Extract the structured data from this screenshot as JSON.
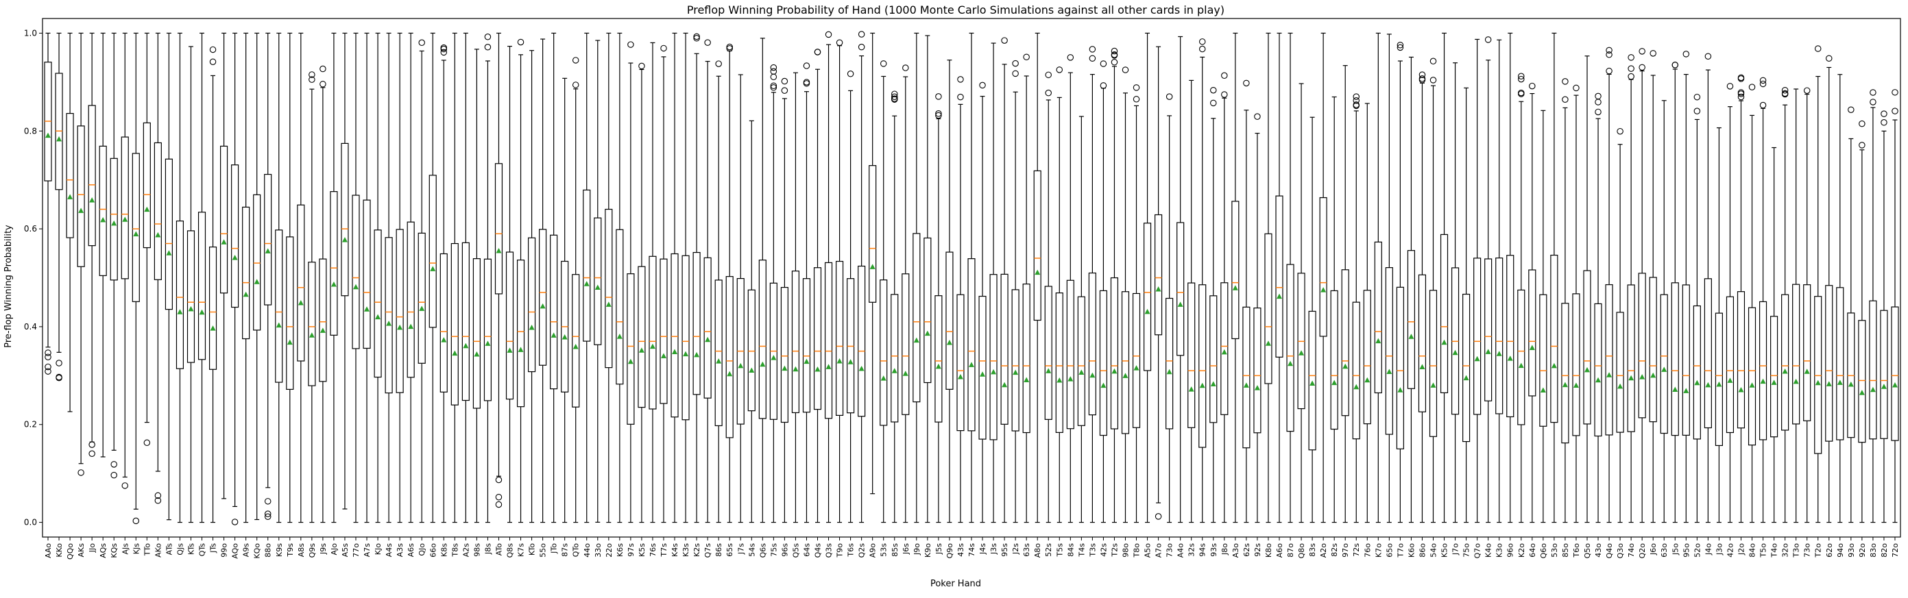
{
  "chart_data": {
    "type": "box",
    "title": "Preflop Winning Probability of Hand (1000 Monte Carlo Simulations against all other cards in play)",
    "xlabel": "Poker Hand",
    "ylabel": "Pre-flop Winning Probability",
    "ylim": [
      -0.03,
      1.03
    ],
    "yticks": [
      0.0,
      0.2,
      0.4,
      0.6,
      0.8,
      1.0
    ],
    "ytick_labels": [
      "0.0",
      "0.2",
      "0.4",
      "0.6",
      "0.8",
      "1.0"
    ],
    "grid": false,
    "legend": null,
    "colors": {
      "box": "#000000",
      "median": "#ff7f0e",
      "mean": "#2ca02c"
    },
    "categories": [
      "AAo",
      "KKo",
      "QQo",
      "AKs",
      "JJo",
      "AQs",
      "KQs",
      "AJs",
      "KJs",
      "TTo",
      "AKo",
      "ATs",
      "QJs",
      "KTs",
      "QTs",
      "JTs",
      "99o",
      "AQo",
      "A9s",
      "KQo",
      "88o",
      "K9s",
      "T9s",
      "A8s",
      "Q9s",
      "J9s",
      "AJo",
      "A5s",
      "77o",
      "A7s",
      "KJo",
      "A4s",
      "A3s",
      "A6s",
      "QJo",
      "66o",
      "K8s",
      "T8s",
      "A2s",
      "98s",
      "J8s",
      "ATo",
      "Q8s",
      "K7s",
      "KTo",
      "55o",
      "JTo",
      "87s",
      "QTo",
      "44o",
      "33o",
      "22o",
      "K6s",
      "97s",
      "K5s",
      "76s",
      "T7s",
      "K4s",
      "K3s",
      "K2s",
      "Q7s",
      "86s",
      "65s",
      "J7s",
      "54s",
      "Q6s",
      "75s",
      "96s",
      "Q5s",
      "64s",
      "Q4s",
      "Q3s",
      "T9o",
      "T6s",
      "Q2s",
      "A9o",
      "53s",
      "85s",
      "J6s",
      "J9o",
      "K9o",
      "J5s",
      "Q9o",
      "43s",
      "74s",
      "J4s",
      "J3s",
      "95s",
      "J2s",
      "63s",
      "A8o",
      "52s",
      "T5s",
      "84s",
      "T4s",
      "T3s",
      "42s",
      "T2s",
      "98o",
      "T8o",
      "A5o",
      "A7o",
      "73o",
      "A4o",
      "32s",
      "94s",
      "93s",
      "J8o",
      "A3o",
      "62s",
      "92s",
      "K8o",
      "A6o",
      "87o",
      "Q8o",
      "83s",
      "A2o",
      "82s",
      "97o",
      "72s",
      "76o",
      "K7o",
      "65o",
      "T7o",
      "K6o",
      "86o",
      "54o",
      "K5o",
      "J7o",
      "75o",
      "Q7o",
      "K4o",
      "K3o",
      "96o",
      "K2o",
      "64o",
      "Q6o",
      "53o",
      "85o",
      "T6o",
      "Q5o",
      "43o",
      "Q4o",
      "Q3o",
      "74o",
      "Q2o",
      "J6o",
      "63o",
      "J5o",
      "95o",
      "52o",
      "J4o",
      "J3o",
      "42o",
      "J2o",
      "84o",
      "T5o",
      "T4o",
      "32o",
      "T3o",
      "73o",
      "T2o",
      "62o",
      "94o",
      "93o",
      "92o",
      "83o",
      "82o",
      "72o"
    ],
    "medians": [
      0.82,
      0.8,
      0.7,
      0.67,
      0.69,
      0.64,
      0.63,
      0.63,
      0.6,
      0.67,
      0.61,
      0.57,
      0.46,
      0.45,
      0.45,
      0.43,
      0.59,
      0.56,
      0.49,
      0.53,
      0.57,
      0.43,
      0.4,
      0.48,
      0.4,
      0.41,
      0.52,
      0.6,
      0.5,
      0.47,
      0.45,
      0.43,
      0.42,
      0.43,
      0.45,
      0.53,
      0.39,
      0.38,
      0.38,
      0.37,
      0.38,
      0.59,
      0.37,
      0.39,
      0.43,
      0.47,
      0.41,
      0.4,
      0.38,
      0.5,
      0.5,
      0.46,
      0.41,
      0.36,
      0.37,
      0.37,
      0.38,
      0.38,
      0.37,
      0.38,
      0.39,
      0.35,
      0.33,
      0.35,
      0.35,
      0.36,
      0.35,
      0.34,
      0.35,
      0.34,
      0.35,
      0.35,
      0.36,
      0.36,
      0.35,
      0.56,
      0.33,
      0.34,
      0.34,
      0.41,
      0.41,
      0.33,
      0.39,
      0.31,
      0.35,
      0.33,
      0.33,
      0.32,
      0.32,
      0.32,
      0.54,
      0.32,
      0.32,
      0.32,
      0.32,
      0.33,
      0.31,
      0.32,
      0.33,
      0.34,
      0.47,
      0.5,
      0.33,
      0.47,
      0.31,
      0.31,
      0.32,
      0.36,
      0.49,
      0.3,
      0.3,
      0.4,
      0.48,
      0.34,
      0.37,
      0.3,
      0.49,
      0.3,
      0.33,
      0.3,
      0.32,
      0.39,
      0.34,
      0.31,
      0.41,
      0.34,
      0.32,
      0.4,
      0.37,
      0.32,
      0.37,
      0.38,
      0.37,
      0.37,
      0.35,
      0.37,
      0.31,
      0.36,
      0.3,
      0.3,
      0.33,
      0.32,
      0.34,
      0.3,
      0.31,
      0.33,
      0.32,
      0.34,
      0.31,
      0.3,
      0.32,
      0.31,
      0.3,
      0.31,
      0.31,
      0.31,
      0.32,
      0.3,
      0.32,
      0.32,
      0.33,
      0.3,
      0.31,
      0.3,
      0.3,
      0.29,
      0.29,
      0.29,
      0.3,
      0.3,
      0.3,
      0.3
    ]
  }
}
